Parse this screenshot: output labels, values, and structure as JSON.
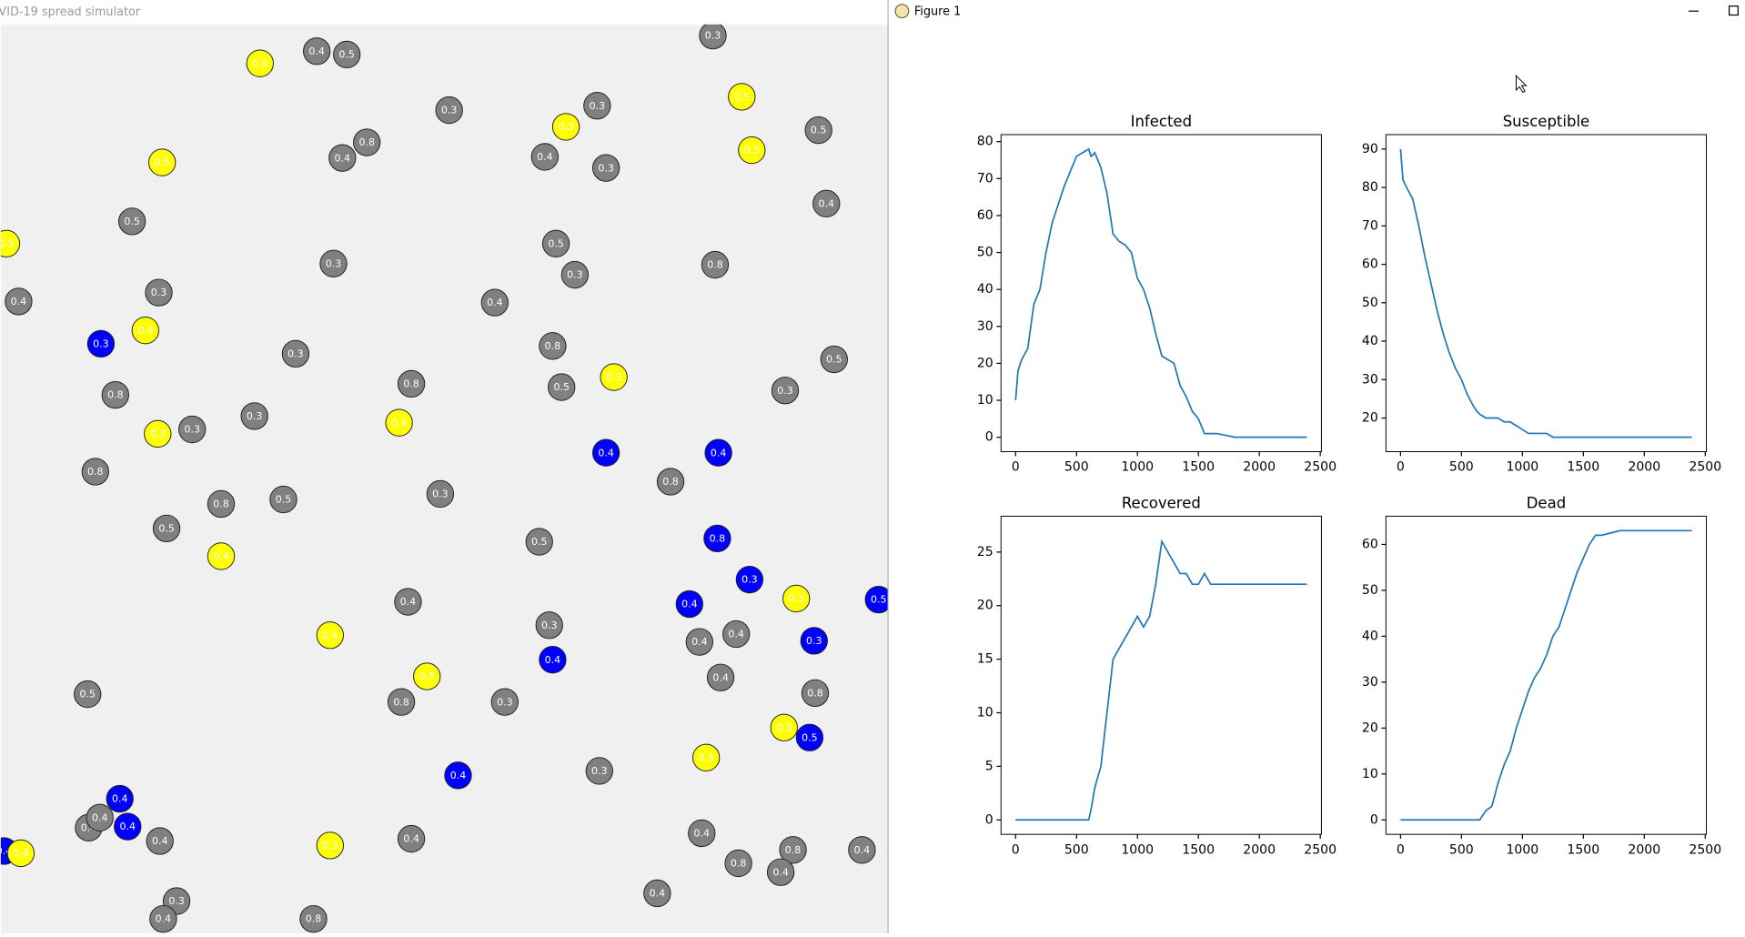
{
  "windows": {
    "simulator_title": "VID-19 spread simulator",
    "figure_title": "Figure 1"
  },
  "simulation": {
    "particles": [
      {
        "label": "0.4",
        "color": "yellow"
      },
      {
        "label": "0.4",
        "color": "gray"
      },
      {
        "label": "0.5",
        "color": "gray"
      },
      {
        "label": "0.3",
        "color": "gray"
      },
      {
        "label": "0.3",
        "color": "gray"
      },
      {
        "label": "0.3",
        "color": "gray"
      },
      {
        "label": "0.3",
        "color": "yellow"
      },
      {
        "label": "0.5",
        "color": "yellow"
      },
      {
        "label": "0.5",
        "color": "yellow"
      },
      {
        "label": "0.8",
        "color": "gray"
      },
      {
        "label": "0.4",
        "color": "gray"
      },
      {
        "label": "0.4",
        "color": "gray"
      },
      {
        "label": "0.3",
        "color": "gray"
      },
      {
        "label": "0.5",
        "color": "yellow"
      },
      {
        "label": "0.5",
        "color": "gray"
      },
      {
        "label": "0.4",
        "color": "gray"
      },
      {
        "label": "0.5",
        "color": "gray"
      },
      {
        "label": "0.5",
        "color": "yellow"
      },
      {
        "label": "0.3",
        "color": "gray"
      },
      {
        "label": "0.5",
        "color": "gray"
      },
      {
        "label": "0.3",
        "color": "gray"
      },
      {
        "label": "0.8",
        "color": "gray"
      },
      {
        "label": "0.4",
        "color": "gray"
      },
      {
        "label": "0.3",
        "color": "gray"
      },
      {
        "label": "0.4",
        "color": "gray"
      },
      {
        "label": "0.3",
        "color": "blue"
      },
      {
        "label": "0.4",
        "color": "yellow"
      },
      {
        "label": "0.3",
        "color": "gray"
      },
      {
        "label": "0.8",
        "color": "gray"
      },
      {
        "label": "0.3",
        "color": "yellow"
      },
      {
        "label": "0.5",
        "color": "gray"
      },
      {
        "label": "0.8",
        "color": "gray"
      },
      {
        "label": "0.8",
        "color": "gray"
      },
      {
        "label": "0.5",
        "color": "gray"
      },
      {
        "label": "0.3",
        "color": "gray"
      },
      {
        "label": "0.3",
        "color": "yellow"
      },
      {
        "label": "0.3",
        "color": "gray"
      },
      {
        "label": "0.3",
        "color": "gray"
      },
      {
        "label": "0.4",
        "color": "yellow"
      },
      {
        "label": "0.4",
        "color": "blue"
      },
      {
        "label": "0.4",
        "color": "blue"
      },
      {
        "label": "0.8",
        "color": "gray"
      },
      {
        "label": "0.8",
        "color": "gray"
      },
      {
        "label": "0.8",
        "color": "gray"
      },
      {
        "label": "0.5",
        "color": "gray"
      },
      {
        "label": "0.3",
        "color": "gray"
      },
      {
        "label": "0.5",
        "color": "gray"
      },
      {
        "label": "0.4",
        "color": "yellow"
      },
      {
        "label": "0.5",
        "color": "gray"
      },
      {
        "label": "0.8",
        "color": "blue"
      },
      {
        "label": "0.3",
        "color": "blue"
      },
      {
        "label": "0.3",
        "color": "yellow"
      },
      {
        "label": "0.5",
        "color": "blue"
      },
      {
        "label": "0.4",
        "color": "gray"
      },
      {
        "label": "0.4",
        "color": "blue"
      },
      {
        "label": "0.3",
        "color": "gray"
      },
      {
        "label": "0.4",
        "color": "yellow"
      },
      {
        "label": "0.4",
        "color": "gray"
      },
      {
        "label": "0.4",
        "color": "gray"
      },
      {
        "label": "0.3",
        "color": "blue"
      },
      {
        "label": "0.4",
        "color": "blue"
      },
      {
        "label": "0.5",
        "color": "yellow"
      },
      {
        "label": "0.4",
        "color": "gray"
      },
      {
        "label": "0.5",
        "color": "gray"
      },
      {
        "label": "0.8",
        "color": "gray"
      },
      {
        "label": "0.3",
        "color": "gray"
      },
      {
        "label": "0.8",
        "color": "gray"
      },
      {
        "label": "0.3",
        "color": "yellow"
      },
      {
        "label": "0.5",
        "color": "blue"
      },
      {
        "label": "0.5",
        "color": "yellow"
      },
      {
        "label": "0.4",
        "color": "blue"
      },
      {
        "label": "0.3",
        "color": "gray"
      },
      {
        "label": "0.4",
        "color": "blue"
      },
      {
        "label": "0.4",
        "color": "gray"
      },
      {
        "label": "0.4",
        "color": "gray"
      },
      {
        "label": "0.4",
        "color": "blue"
      },
      {
        "label": "0.4",
        "color": "gray"
      },
      {
        "label": "0.4",
        "color": "blue"
      },
      {
        "label": "0.4",
        "color": "yellow"
      },
      {
        "label": "0.3",
        "color": "yellow"
      },
      {
        "label": "0.4",
        "color": "gray"
      },
      {
        "label": "0.4",
        "color": "gray"
      },
      {
        "label": "0.8",
        "color": "gray"
      },
      {
        "label": "0.8",
        "color": "gray"
      },
      {
        "label": "0.4",
        "color": "gray"
      },
      {
        "label": "0.4",
        "color": "gray"
      },
      {
        "label": "0.3",
        "color": "gray"
      },
      {
        "label": "0.4",
        "color": "gray"
      },
      {
        "label": "0.8",
        "color": "gray"
      },
      {
        "label": "0.4",
        "color": "gray"
      }
    ]
  },
  "chart_data": [
    {
      "type": "line",
      "title": "Infected",
      "x": [
        0,
        20,
        50,
        100,
        150,
        200,
        250,
        300,
        350,
        400,
        450,
        500,
        550,
        600,
        620,
        650,
        700,
        750,
        800,
        850,
        900,
        950,
        1000,
        1050,
        1100,
        1150,
        1200,
        1250,
        1300,
        1350,
        1400,
        1450,
        1500,
        1550,
        1600,
        1650,
        1800,
        1900,
        2000,
        2100,
        2200,
        2300,
        2390
      ],
      "series": [
        {
          "color": "#1f77b4",
          "values": [
            10,
            18,
            21,
            24,
            36,
            40,
            50,
            58,
            63,
            68,
            72,
            76,
            77,
            78,
            76,
            77,
            73,
            66,
            55,
            53,
            52,
            50,
            43,
            40,
            35,
            28,
            22,
            21,
            20,
            14,
            11,
            7,
            5,
            1,
            1,
            1,
            0,
            0,
            0,
            0,
            0,
            0,
            0
          ]
        }
      ],
      "xlim": [
        -119.5,
        2509.5
      ],
      "xticks": [
        0,
        500,
        1000,
        1500,
        2000,
        2500
      ],
      "ylim": [
        -3.9,
        81.9
      ],
      "yticks": [
        0,
        10,
        20,
        30,
        40,
        50,
        60,
        70,
        80
      ]
    },
    {
      "type": "line",
      "title": "Susceptible",
      "x": [
        0,
        20,
        50,
        100,
        150,
        200,
        250,
        300,
        350,
        400,
        450,
        500,
        550,
        600,
        620,
        650,
        700,
        750,
        800,
        850,
        900,
        950,
        1000,
        1050,
        1100,
        1150,
        1200,
        1250,
        1300,
        1350,
        1400,
        1450,
        1500,
        1550,
        1600,
        1650,
        1800,
        1900,
        2000,
        2100,
        2200,
        2300,
        2390
      ],
      "series": [
        {
          "color": "#1f77b4",
          "values": [
            90,
            82,
            80,
            77,
            70,
            62,
            55,
            48,
            42,
            37,
            33,
            30,
            26,
            23,
            22,
            21,
            20,
            20,
            20,
            19,
            19,
            18,
            17,
            16,
            16,
            16,
            16,
            15,
            15,
            15,
            15,
            15,
            15,
            15,
            15,
            15,
            15,
            15,
            15,
            15,
            15,
            15,
            15
          ]
        }
      ],
      "xlim": [
        -119.5,
        2509.5
      ],
      "xticks": [
        0,
        500,
        1000,
        1500,
        2000,
        2500
      ],
      "ylim": [
        11.25,
        93.75
      ],
      "yticks": [
        20,
        30,
        40,
        50,
        60,
        70,
        80,
        90
      ]
    },
    {
      "type": "line",
      "title": "Recovered",
      "x": [
        0,
        20,
        50,
        100,
        150,
        200,
        250,
        300,
        350,
        400,
        450,
        500,
        550,
        600,
        620,
        650,
        700,
        750,
        800,
        850,
        900,
        950,
        1000,
        1050,
        1100,
        1150,
        1200,
        1250,
        1300,
        1350,
        1400,
        1450,
        1500,
        1550,
        1600,
        1650,
        1800,
        1900,
        2000,
        2100,
        2200,
        2300,
        2390
      ],
      "series": [
        {
          "color": "#1f77b4",
          "values": [
            0,
            0,
            0,
            0,
            0,
            0,
            0,
            0,
            0,
            0,
            0,
            0,
            0,
            0,
            1,
            3,
            5,
            10,
            15,
            16,
            17,
            18,
            19,
            18,
            19,
            22,
            26,
            25,
            24,
            23,
            23,
            22,
            22,
            23,
            22,
            22,
            22,
            22,
            22,
            22,
            22,
            22,
            22
          ]
        }
      ],
      "xlim": [
        -119.5,
        2509.5
      ],
      "xticks": [
        0,
        500,
        1000,
        1500,
        2000,
        2500
      ],
      "ylim": [
        -1.35,
        28.35
      ],
      "yticks": [
        0,
        5,
        10,
        15,
        20,
        25
      ]
    },
    {
      "type": "line",
      "title": "Dead",
      "x": [
        0,
        20,
        50,
        100,
        150,
        200,
        250,
        300,
        350,
        400,
        450,
        500,
        550,
        600,
        620,
        650,
        700,
        750,
        800,
        850,
        900,
        950,
        1000,
        1050,
        1100,
        1150,
        1200,
        1250,
        1300,
        1350,
        1400,
        1450,
        1500,
        1550,
        1600,
        1650,
        1800,
        1900,
        2000,
        2100,
        2200,
        2300,
        2390
      ],
      "series": [
        {
          "color": "#1f77b4",
          "values": [
            0,
            0,
            0,
            0,
            0,
            0,
            0,
            0,
            0,
            0,
            0,
            0,
            0,
            0,
            0,
            0,
            2,
            3,
            8,
            12,
            15,
            20,
            24,
            28,
            31,
            33,
            36,
            40,
            42,
            46,
            50,
            54,
            57,
            60,
            62,
            62,
            63,
            63,
            63,
            63,
            63,
            63,
            63
          ]
        }
      ],
      "xlim": [
        -119.5,
        2509.5
      ],
      "xticks": [
        0,
        500,
        1000,
        1500,
        2000,
        2500
      ],
      "ylim": [
        -3.15,
        66.15
      ],
      "yticks": [
        0,
        10,
        20,
        30,
        40,
        50,
        60
      ]
    }
  ]
}
